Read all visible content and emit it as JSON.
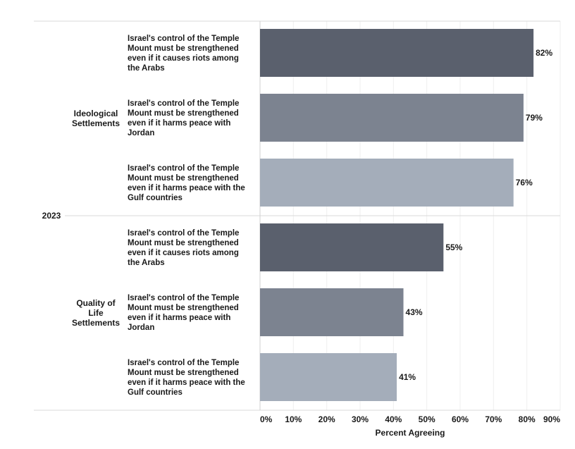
{
  "chart_data": {
    "type": "bar",
    "orientation": "horizontal",
    "year_label": "2023",
    "groups": [
      {
        "name": "Ideological Settlements",
        "name_lines": [
          "Ideological",
          "Settlements"
        ],
        "bars": [
          {
            "label_lines": [
              "Israel's control of the Temple",
              "Mount must be strengthened",
              "even if it causes riots among",
              "the Arabs"
            ],
            "value": 82,
            "value_label": "82%",
            "color": "#5a606d"
          },
          {
            "label_lines": [
              "Israel's control of the Temple",
              "Mount must be strengthened",
              "even if it harms peace with",
              "Jordan"
            ],
            "value": 79,
            "value_label": "79%",
            "color": "#7c8390"
          },
          {
            "label_lines": [
              "Israel's control of the Temple",
              "Mount must be strengthened",
              "even if it harms peace with the",
              "Gulf countries"
            ],
            "value": 76,
            "value_label": "76%",
            "color": "#a4adba"
          }
        ]
      },
      {
        "name": "Quality of Life Settlements",
        "name_lines": [
          "Quality of",
          "Life",
          "Settlements"
        ],
        "bars": [
          {
            "label_lines": [
              "Israel's control of the Temple",
              "Mount must be strengthened",
              "even if it causes riots among",
              "the Arabs"
            ],
            "value": 55,
            "value_label": "55%",
            "color": "#5a606d"
          },
          {
            "label_lines": [
              "Israel's control of the Temple",
              "Mount must be strengthened",
              "even if it harms peace with",
              "Jordan"
            ],
            "value": 43,
            "value_label": "43%",
            "color": "#7c8390"
          },
          {
            "label_lines": [
              "Israel's control of the Temple",
              "Mount must be strengthened",
              "even if it harms peace with the",
              "Gulf countries"
            ],
            "value": 41,
            "value_label": "41%",
            "color": "#a4adba"
          }
        ]
      }
    ],
    "x_ticks": [
      "0%",
      "10%",
      "20%",
      "30%",
      "40%",
      "50%",
      "60%",
      "70%",
      "80%",
      "90%"
    ],
    "xlim": [
      0,
      90
    ],
    "xlabel": "Percent Agreeing",
    "grid": true
  }
}
